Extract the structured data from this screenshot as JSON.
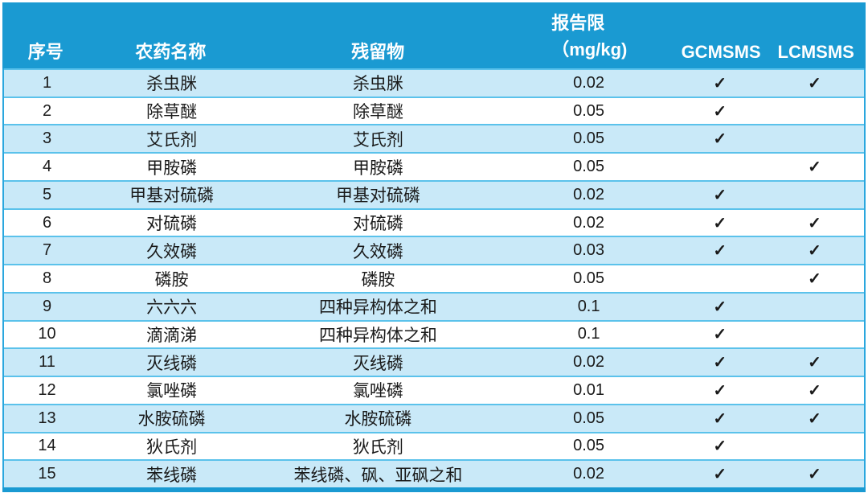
{
  "colors": {
    "header-bg": "#1A9AD2",
    "header-text": "#FFFFFF",
    "row-alt": "#C9E9F8",
    "row-white": "#FFFFFF",
    "separator": "#5BC2EB",
    "outer-border": "#2AA7DE",
    "text": "#1A1A1A"
  },
  "table": {
    "check_glyph": "✓",
    "columns": [
      {
        "key": "index",
        "label": "序号"
      },
      {
        "key": "pesticide",
        "label": "农药名称"
      },
      {
        "key": "residue",
        "label": "残留物"
      },
      {
        "key": "limit",
        "label_line1": "报告限",
        "label_line2": "（mg/kg)"
      },
      {
        "key": "gcmsms",
        "label": "GCMSMS"
      },
      {
        "key": "lcmsms",
        "label": "LCMSMS"
      }
    ],
    "rows": [
      {
        "index": "1",
        "pesticide": "杀虫脒",
        "residue": "杀虫脒",
        "limit": "0.02",
        "gcmsms": true,
        "lcmsms": true
      },
      {
        "index": "2",
        "pesticide": "除草醚",
        "residue": "除草醚",
        "limit": "0.05",
        "gcmsms": true,
        "lcmsms": false
      },
      {
        "index": "3",
        "pesticide": "艾氏剂",
        "residue": "艾氏剂",
        "limit": "0.05",
        "gcmsms": true,
        "lcmsms": false
      },
      {
        "index": "4",
        "pesticide": "甲胺磷",
        "residue": "甲胺磷",
        "limit": "0.05",
        "gcmsms": false,
        "lcmsms": true
      },
      {
        "index": "5",
        "pesticide": "甲基对硫磷",
        "residue": "甲基对硫磷",
        "limit": "0.02",
        "gcmsms": true,
        "lcmsms": false
      },
      {
        "index": "6",
        "pesticide": "对硫磷",
        "residue": "对硫磷",
        "limit": "0.02",
        "gcmsms": true,
        "lcmsms": true
      },
      {
        "index": "7",
        "pesticide": "久效磷",
        "residue": "久效磷",
        "limit": "0.03",
        "gcmsms": true,
        "lcmsms": true
      },
      {
        "index": "8",
        "pesticide": "磷胺",
        "residue": "磷胺",
        "limit": "0.05",
        "gcmsms": false,
        "lcmsms": true
      },
      {
        "index": "9",
        "pesticide": "六六六",
        "residue": "四种异构体之和",
        "limit": "0.1",
        "gcmsms": true,
        "lcmsms": false
      },
      {
        "index": "10",
        "pesticide": "滴滴涕",
        "residue": "四种异构体之和",
        "limit": "0.1",
        "gcmsms": true,
        "lcmsms": false
      },
      {
        "index": "11",
        "pesticide": "灭线磷",
        "residue": "灭线磷",
        "limit": "0.02",
        "gcmsms": true,
        "lcmsms": true
      },
      {
        "index": "12",
        "pesticide": "氯唑磷",
        "residue": "氯唑磷",
        "limit": "0.01",
        "gcmsms": true,
        "lcmsms": true
      },
      {
        "index": "13",
        "pesticide": "水胺硫磷",
        "residue": "水胺硫磷",
        "limit": "0.05",
        "gcmsms": true,
        "lcmsms": true
      },
      {
        "index": "14",
        "pesticide": "狄氏剂",
        "residue": "狄氏剂",
        "limit": "0.05",
        "gcmsms": true,
        "lcmsms": false
      },
      {
        "index": "15",
        "pesticide": "苯线磷",
        "residue": "苯线磷、砜、亚砜之和",
        "limit": "0.02",
        "gcmsms": true,
        "lcmsms": true
      }
    ]
  }
}
